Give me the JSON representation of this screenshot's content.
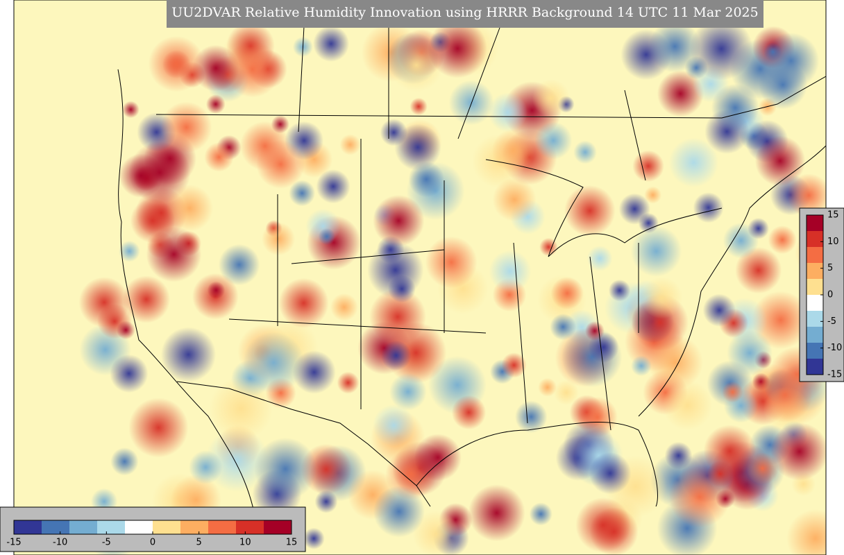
{
  "title": "UU2DVAR Relative Humidity Innovation using HRRR Background 14 UTC 11 Mar 2025",
  "colormap": [
    "#313695",
    "#4575b4",
    "#74add1",
    "#abd9e9",
    "#ffffff",
    "#fee090",
    "#fdae61",
    "#f46d43",
    "#d73027",
    "#a50026"
  ],
  "colorbars": [
    {
      "orientation": "horizontal",
      "lim": [
        -15,
        15
      ],
      "ticks": [
        -15,
        -10,
        -5,
        0,
        5,
        10,
        15
      ]
    },
    {
      "orientation": "vertical",
      "lim": [
        -15,
        15
      ],
      "ticks": [
        -15,
        -10,
        -5,
        0,
        5,
        10,
        15
      ]
    }
  ]
}
